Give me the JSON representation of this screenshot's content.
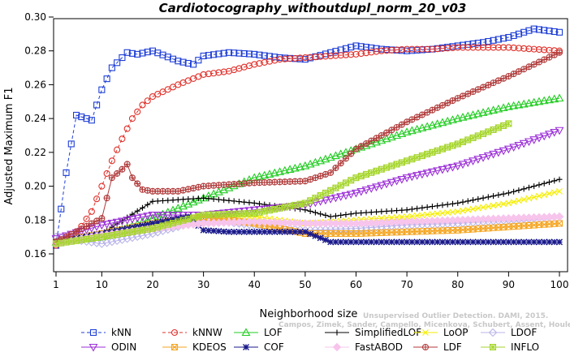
{
  "chart_data": {
    "type": "line",
    "title": "Cardiotocography_withoutdupl_norm_20_v03",
    "xlabel": "Neighborhood size",
    "ylabel": "Adjusted Maximum F1",
    "xlim": [
      1,
      100
    ],
    "ylim": [
      0.16,
      0.3
    ],
    "xticks": [
      1,
      10,
      20,
      30,
      40,
      50,
      60,
      70,
      80,
      90,
      100
    ],
    "yticks": [
      0.16,
      0.18,
      0.2,
      0.22,
      0.24,
      0.26,
      0.28,
      0.3
    ],
    "ytick_labels": [
      "0.16",
      "0.18",
      "0.20",
      "0.22",
      "0.24",
      "0.26",
      "0.28",
      "0.30"
    ],
    "legend_placement": "bottom",
    "grid": false,
    "series": [
      {
        "name": "kNN",
        "color": "#1f3fd6",
        "marker": "square",
        "dash": "4,3",
        "x": [
          1,
          3,
          5,
          8,
          10,
          12,
          15,
          17,
          20,
          25,
          28,
          30,
          35,
          40,
          45,
          50,
          55,
          60,
          65,
          70,
          75,
          80,
          85,
          90,
          95,
          100
        ],
        "y": [
          0.165,
          0.208,
          0.242,
          0.239,
          0.257,
          0.27,
          0.279,
          0.278,
          0.28,
          0.274,
          0.272,
          0.277,
          0.279,
          0.278,
          0.276,
          0.275,
          0.279,
          0.283,
          0.281,
          0.28,
          0.281,
          0.283,
          0.285,
          0.288,
          0.293,
          0.291
        ]
      },
      {
        "name": "kNNW",
        "color": "#e0302a",
        "marker": "circle",
        "dash": "4,3",
        "x": [
          1,
          5,
          8,
          10,
          12,
          14,
          16,
          18,
          20,
          25,
          30,
          35,
          40,
          45,
          50,
          55,
          60,
          65,
          70,
          75,
          80,
          85,
          90,
          95,
          100
        ],
        "y": [
          0.165,
          0.172,
          0.185,
          0.2,
          0.215,
          0.228,
          0.24,
          0.248,
          0.253,
          0.26,
          0.266,
          0.268,
          0.272,
          0.275,
          0.276,
          0.277,
          0.278,
          0.28,
          0.281,
          0.281,
          0.282,
          0.282,
          0.282,
          0.281,
          0.28
        ]
      },
      {
        "name": "LOF",
        "color": "#22cc22",
        "marker": "triangle-up",
        "dash": "",
        "x": [
          1,
          10,
          20,
          30,
          40,
          50,
          60,
          70,
          80,
          90,
          100
        ],
        "y": [
          0.167,
          0.17,
          0.181,
          0.193,
          0.205,
          0.212,
          0.222,
          0.232,
          0.24,
          0.247,
          0.252
        ]
      },
      {
        "name": "SimplifiedLOF",
        "color": "#000000",
        "marker": "plus",
        "dash": "",
        "x": [
          1,
          10,
          20,
          30,
          40,
          50,
          55,
          60,
          70,
          80,
          90,
          100
        ],
        "y": [
          0.166,
          0.172,
          0.191,
          0.193,
          0.19,
          0.186,
          0.182,
          0.184,
          0.186,
          0.19,
          0.196,
          0.204
        ]
      },
      {
        "name": "LoOP",
        "color": "#f5ee00",
        "marker": "x",
        "dash": "",
        "x": [
          1,
          10,
          20,
          30,
          40,
          50,
          60,
          70,
          80,
          90,
          100
        ],
        "y": [
          0.168,
          0.171,
          0.178,
          0.182,
          0.182,
          0.178,
          0.18,
          0.182,
          0.185,
          0.19,
          0.197
        ]
      },
      {
        "name": "LDOF",
        "color": "#b9b4e8",
        "marker": "diamond",
        "dash": "",
        "x": [
          1,
          10,
          20,
          30,
          40,
          50,
          60,
          70,
          80,
          90,
          100
        ],
        "y": [
          0.17,
          0.166,
          0.172,
          0.18,
          0.177,
          0.174,
          0.175,
          0.177,
          0.178,
          0.18,
          0.182
        ]
      },
      {
        "name": "ODIN",
        "color": "#9b2fd6",
        "marker": "triangle-down",
        "dash": "",
        "x": [
          1,
          10,
          20,
          30,
          40,
          50,
          60,
          70,
          80,
          90,
          100
        ],
        "y": [
          0.169,
          0.177,
          0.183,
          0.183,
          0.186,
          0.189,
          0.196,
          0.205,
          0.212,
          0.222,
          0.233
        ]
      },
      {
        "name": "KDEOS",
        "color": "#f5a623",
        "marker": "square-x",
        "dash": "",
        "x": [
          1,
          10,
          20,
          30,
          40,
          50,
          60,
          70,
          80,
          90,
          100
        ],
        "y": [
          0.167,
          0.172,
          0.178,
          0.182,
          0.178,
          0.172,
          0.172,
          0.173,
          0.174,
          0.176,
          0.178
        ]
      },
      {
        "name": "COF",
        "color": "#1a1a8c",
        "marker": "asterisk",
        "dash": "",
        "x": [
          1,
          10,
          20,
          27,
          30,
          35,
          40,
          50,
          55,
          60,
          70,
          80,
          90,
          100
        ],
        "y": [
          0.167,
          0.172,
          0.178,
          0.182,
          0.174,
          0.173,
          0.173,
          0.173,
          0.167,
          0.167,
          0.167,
          0.167,
          0.167,
          0.167
        ]
      },
      {
        "name": "FastABOD",
        "color": "#f7c4ec",
        "marker": "diamond-filled",
        "dash": "",
        "x": [
          1,
          10,
          20,
          30,
          40,
          50,
          60,
          70,
          80,
          90,
          100
        ],
        "y": [
          0.166,
          0.171,
          0.175,
          0.178,
          0.179,
          0.178,
          0.178,
          0.179,
          0.18,
          0.181,
          0.182
        ]
      },
      {
        "name": "LDF",
        "color": "#b03a3a",
        "marker": "circle-plus",
        "dash": "",
        "x": [
          1,
          10,
          12,
          14,
          15,
          16,
          18,
          20,
          25,
          30,
          40,
          50,
          55,
          60,
          70,
          80,
          90,
          100
        ],
        "y": [
          0.167,
          0.181,
          0.205,
          0.21,
          0.213,
          0.205,
          0.198,
          0.197,
          0.197,
          0.2,
          0.202,
          0.203,
          0.208,
          0.222,
          0.238,
          0.252,
          0.265,
          0.279
        ]
      },
      {
        "name": "INFLO",
        "color": "#a6d62e",
        "marker": "square-star",
        "dash": "",
        "x": [
          1,
          10,
          20,
          30,
          40,
          50,
          60,
          70,
          80,
          90
        ],
        "y": [
          0.166,
          0.17,
          0.175,
          0.183,
          0.184,
          0.19,
          0.205,
          0.215,
          0.225,
          0.237
        ]
      }
    ]
  },
  "watermark": {
    "line1": "Unsupervised Outlier Detection. DAMI, 2015.",
    "line2": "Campos, Zimek, Sander, Campello, Micenkova, Schubert, Assent, Houle"
  }
}
